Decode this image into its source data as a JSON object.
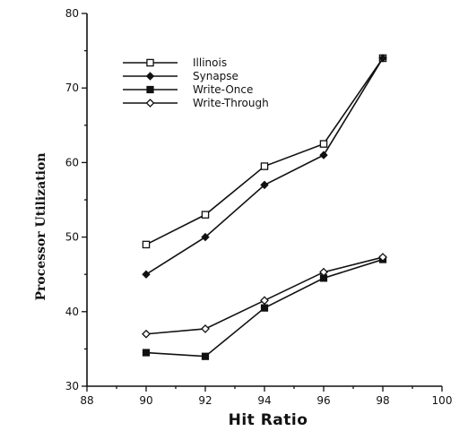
{
  "chart_data": {
    "type": "line",
    "xlabel": "Hit Ratio",
    "ylabel": "Processor Utilization",
    "xlim": [
      88,
      100
    ],
    "ylim": [
      30,
      80
    ],
    "xticks": [
      88,
      90,
      92,
      94,
      96,
      98,
      100
    ],
    "yticks": [
      30,
      40,
      50,
      60,
      70,
      80
    ],
    "grid": false,
    "legend_position": "top-left",
    "series": [
      {
        "name": "Illinois",
        "marker": "open-square",
        "x": [
          90,
          92,
          94,
          96,
          98
        ],
        "y": [
          49,
          53,
          59.5,
          62.5,
          74
        ]
      },
      {
        "name": "Synapse",
        "marker": "filled-diamond",
        "x": [
          90,
          92,
          94,
          96,
          98
        ],
        "y": [
          45,
          50,
          57,
          61,
          74
        ]
      },
      {
        "name": "Write-Once",
        "marker": "filled-square",
        "x": [
          90,
          92,
          94,
          96,
          98
        ],
        "y": [
          34.5,
          34,
          40.5,
          44.5,
          47
        ]
      },
      {
        "name": "Write-Through",
        "marker": "open-diamond",
        "x": [
          90,
          92,
          94,
          96,
          98
        ],
        "y": [
          37,
          37.7,
          41.5,
          45.3,
          47.3
        ]
      }
    ]
  }
}
